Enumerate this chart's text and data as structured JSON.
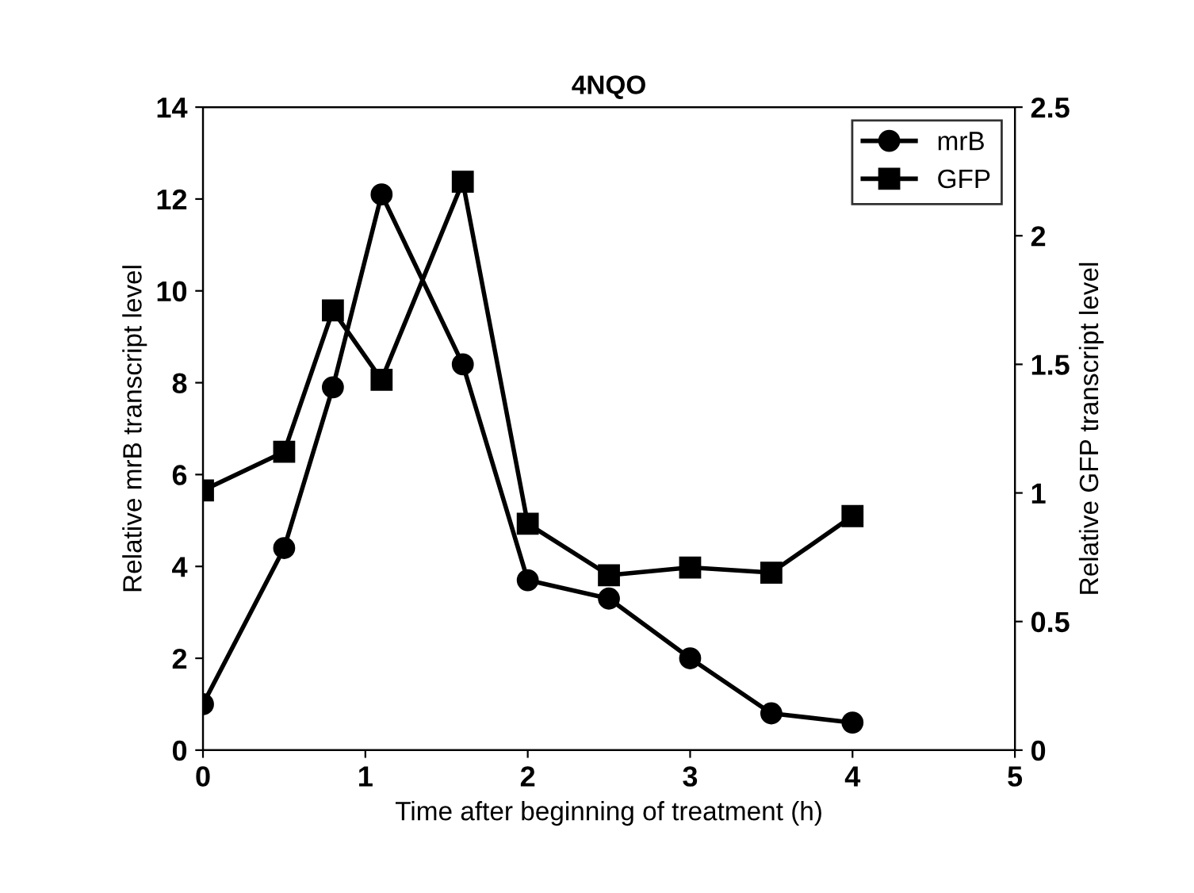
{
  "chart_data": {
    "type": "line",
    "title": "4NQO",
    "xlabel": "Time after beginning of treatment (h)",
    "ylabel": "Relative mrB transcript level",
    "y2label": "Relative GFP transcript level",
    "x": [
      0,
      0.5,
      0.8,
      1.1,
      1.6,
      2,
      2.5,
      3,
      3.5,
      4
    ],
    "series": [
      {
        "name": "mrB",
        "color": "#000000",
        "marker": "circle",
        "values": [
          1.0,
          4.4,
          7.9,
          12.1,
          8.4,
          3.7,
          3.3,
          2.0,
          0.8,
          0.6
        ]
      },
      {
        "name": "GFP",
        "color": "#000000",
        "marker": "square",
        "axis": "y2",
        "values": [
          1.01,
          1.16,
          1.71,
          1.44,
          2.21,
          0.88,
          0.68,
          0.71,
          0.69,
          0.91
        ]
      }
    ],
    "xlim": [
      0,
      5
    ],
    "xticks": [
      0,
      1,
      2,
      3,
      4,
      5
    ],
    "ylim": [
      0,
      14
    ],
    "yticks": [
      0,
      2,
      4,
      6,
      8,
      10,
      12,
      14
    ],
    "y2lim": [
      0,
      2.5
    ],
    "y2ticks": [
      0,
      0.5,
      1,
      1.5,
      2,
      2.5
    ],
    "legend": "top right",
    "grid": false,
    "line_style": "solid"
  }
}
